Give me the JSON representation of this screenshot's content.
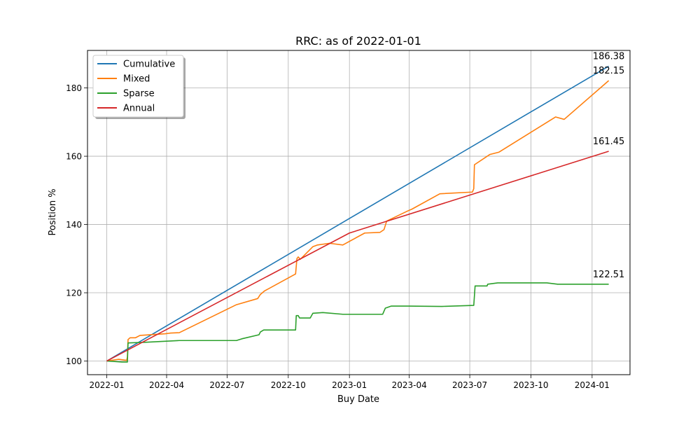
{
  "chart_data": {
    "type": "line",
    "title": "RRC: as of 2022-01-01",
    "xlabel": "Buy Date",
    "ylabel": "Position %",
    "xlim": [
      "2021-12-03",
      "2024-02-27"
    ],
    "ylim": [
      96,
      191
    ],
    "x_ticks": [
      "2022-01-01",
      "2022-04-01",
      "2022-07-01",
      "2022-10-01",
      "2023-01-01",
      "2023-04-01",
      "2023-07-01",
      "2023-10-01",
      "2024-01-01"
    ],
    "x_tick_labels": [
      "2022-01",
      "2022-04",
      "2022-07",
      "2022-10",
      "2023-01",
      "2023-04",
      "2023-07",
      "2023-10",
      "2024-01"
    ],
    "y_ticks": [
      100,
      120,
      140,
      160,
      180
    ],
    "grid": true,
    "legend_position": "upper-left",
    "series": [
      {
        "name": "Cumulative",
        "color": "#1f77b4",
        "points": [
          [
            "2022-01-01",
            100
          ],
          [
            "2024-01-26",
            186.38
          ]
        ],
        "end_label": "186.38"
      },
      {
        "name": "Mixed",
        "color": "#ff7f0e",
        "points": [
          [
            "2022-01-01",
            100
          ],
          [
            "2022-01-19",
            100.5
          ],
          [
            "2022-01-31",
            100.2
          ],
          [
            "2022-02-01",
            101.2
          ],
          [
            "2022-02-02",
            106.3
          ],
          [
            "2022-02-05",
            106.8
          ],
          [
            "2022-02-13",
            106.8
          ],
          [
            "2022-02-20",
            107.5
          ],
          [
            "2022-03-30",
            108.0
          ],
          [
            "2022-04-07",
            108.2
          ],
          [
            "2022-04-20",
            108.3
          ],
          [
            "2022-07-15",
            116.5
          ],
          [
            "2022-08-16",
            118.3
          ],
          [
            "2022-08-20",
            119.5
          ],
          [
            "2022-08-26",
            120.5
          ],
          [
            "2022-10-12",
            125.5
          ],
          [
            "2022-10-14",
            130.0
          ],
          [
            "2022-10-16",
            130.5
          ],
          [
            "2022-10-19",
            129.8
          ],
          [
            "2022-11-07",
            133.5
          ],
          [
            "2022-11-14",
            134.0
          ],
          [
            "2022-12-02",
            134.5
          ],
          [
            "2022-12-22",
            134.0
          ],
          [
            "2023-01-24",
            137.5
          ],
          [
            "2023-02-16",
            137.7
          ],
          [
            "2023-02-22",
            138.5
          ],
          [
            "2023-02-26",
            141.0
          ],
          [
            "2023-03-30",
            144.0
          ],
          [
            "2023-04-05",
            144.5
          ],
          [
            "2023-05-17",
            149.0
          ],
          [
            "2023-07-05",
            149.5
          ],
          [
            "2023-07-07",
            150.5
          ],
          [
            "2023-07-08",
            157.5
          ],
          [
            "2023-07-31",
            160.5
          ],
          [
            "2023-08-14",
            161.2
          ],
          [
            "2023-11-07",
            171.5
          ],
          [
            "2023-11-20",
            170.8
          ],
          [
            "2024-01-26",
            182.15
          ]
        ],
        "end_label": "182.15"
      },
      {
        "name": "Sparse",
        "color": "#2ca02c",
        "points": [
          [
            "2022-01-01",
            100
          ],
          [
            "2022-01-24",
            99.7
          ],
          [
            "2022-02-01",
            99.7
          ],
          [
            "2022-02-02",
            105.3
          ],
          [
            "2022-03-01",
            105.5
          ],
          [
            "2022-04-20",
            106.0
          ],
          [
            "2022-07-15",
            106.0
          ],
          [
            "2022-07-23",
            106.5
          ],
          [
            "2022-08-18",
            107.7
          ],
          [
            "2022-08-20",
            108.5
          ],
          [
            "2022-08-25",
            109.1
          ],
          [
            "2022-10-12",
            109.1
          ],
          [
            "2022-10-13",
            113.3
          ],
          [
            "2022-10-16",
            113.3
          ],
          [
            "2022-10-18",
            112.6
          ],
          [
            "2022-11-03",
            112.6
          ],
          [
            "2022-11-07",
            114.0
          ],
          [
            "2022-11-22",
            114.2
          ],
          [
            "2022-12-22",
            113.7
          ],
          [
            "2023-02-20",
            113.7
          ],
          [
            "2023-02-24",
            115.5
          ],
          [
            "2023-03-05",
            116.1
          ],
          [
            "2023-03-30",
            116.1
          ],
          [
            "2023-05-20",
            116.0
          ],
          [
            "2023-07-07",
            116.3
          ],
          [
            "2023-07-09",
            122.0
          ],
          [
            "2023-07-27",
            122.0
          ],
          [
            "2023-07-28",
            122.5
          ],
          [
            "2023-08-12",
            122.9
          ],
          [
            "2023-10-25",
            122.9
          ],
          [
            "2023-11-10",
            122.5
          ],
          [
            "2024-01-26",
            122.51
          ]
        ],
        "end_label": "122.51"
      },
      {
        "name": "Annual",
        "color": "#d62728",
        "points": [
          [
            "2022-01-01",
            100
          ],
          [
            "2023-01-01",
            137.5
          ],
          [
            "2024-01-26",
            161.45
          ]
        ],
        "end_label": "161.45"
      }
    ]
  }
}
